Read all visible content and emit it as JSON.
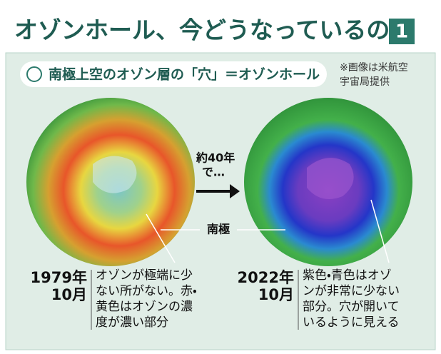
{
  "header": {
    "title": "オゾンホール、今どうなっているの？",
    "badge": "1"
  },
  "subtitle": "南極上空のオゾン層の「穴」＝オゾンホール",
  "credit": [
    "※画像は米航空",
    "宇宙局提供"
  ],
  "arrow_label": [
    "約40年",
    "で…"
  ],
  "pole_label": "南極",
  "panels": [
    {
      "year": "1979年",
      "month": "10月",
      "description": [
        "オゾンが極端に少",
        "ない所がない。赤・",
        "黄色はオゾンの濃",
        "度が濃い部分"
      ]
    },
    {
      "year": "2022年",
      "month": "10月",
      "description": [
        "紫色・青色はオゾ",
        "ンが非常に少ない",
        "部分。穴が開いて",
        "いるように見える"
      ]
    }
  ]
}
